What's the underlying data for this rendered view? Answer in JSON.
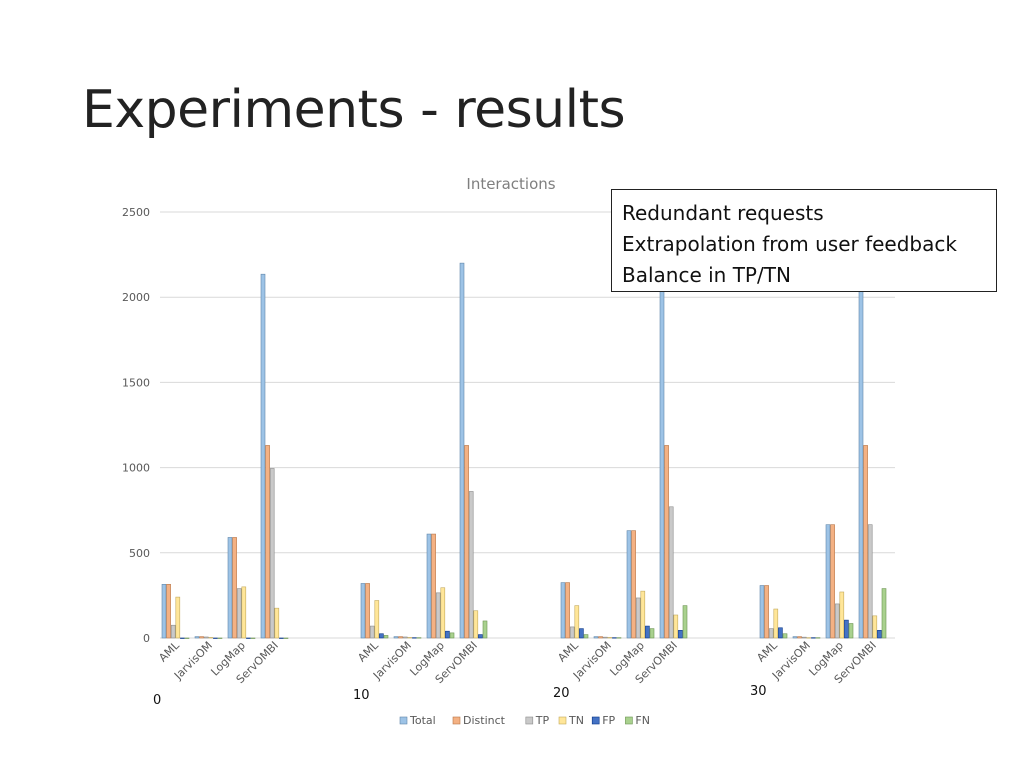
{
  "slide": {
    "title": "Experiments - results"
  },
  "callout": {
    "lines": [
      "Redundant requests",
      "Extrapolation from user feedback",
      "Balance in TP/TN"
    ]
  },
  "group_labels": [
    "0",
    "10",
    "20",
    "30"
  ],
  "chart_data": {
    "type": "bar",
    "title": "Interactions",
    "xlabel": "",
    "ylabel": "",
    "ylim": [
      0,
      2500
    ],
    "yticks": [
      0,
      500,
      1000,
      1500,
      2000,
      2500
    ],
    "grid": true,
    "legend": "bottom",
    "groups": [
      "0",
      "10",
      "20",
      "30"
    ],
    "categories": [
      "AML",
      "JarvisOM",
      "LogMap",
      "ServOMBI"
    ],
    "series": [
      {
        "name": "Total",
        "color": "#9DC3E6",
        "values": [
          [
            315,
            8,
            590,
            2135
          ],
          [
            320,
            8,
            610,
            2200
          ],
          [
            325,
            8,
            630,
            2200
          ],
          [
            308,
            8,
            665,
            2200
          ]
        ]
      },
      {
        "name": "Distinct",
        "color": "#F4B183",
        "values": [
          [
            315,
            8,
            590,
            1130
          ],
          [
            320,
            8,
            610,
            1130
          ],
          [
            325,
            8,
            630,
            1130
          ],
          [
            308,
            8,
            665,
            1130
          ]
        ]
      },
      {
        "name": "TP",
        "color": "#C9C9C9",
        "values": [
          [
            75,
            6,
            290,
            995
          ],
          [
            70,
            6,
            265,
            860
          ],
          [
            65,
            5,
            235,
            770
          ],
          [
            55,
            5,
            200,
            665
          ]
        ]
      },
      {
        "name": "TN",
        "color": "#FFE699",
        "values": [
          [
            240,
            3,
            300,
            175
          ],
          [
            220,
            3,
            295,
            160
          ],
          [
            190,
            3,
            275,
            135
          ],
          [
            170,
            2,
            270,
            130
          ]
        ]
      },
      {
        "name": "FP",
        "color": "#4472C4",
        "values": [
          [
            0,
            0,
            0,
            0
          ],
          [
            25,
            2,
            40,
            20
          ],
          [
            55,
            2,
            70,
            45
          ],
          [
            60,
            2,
            105,
            45
          ]
        ]
      },
      {
        "name": "FN",
        "color": "#A9D18E",
        "values": [
          [
            0,
            0,
            0,
            0
          ],
          [
            15,
            2,
            30,
            100
          ],
          [
            20,
            2,
            55,
            190
          ],
          [
            25,
            2,
            85,
            290
          ]
        ]
      }
    ]
  }
}
